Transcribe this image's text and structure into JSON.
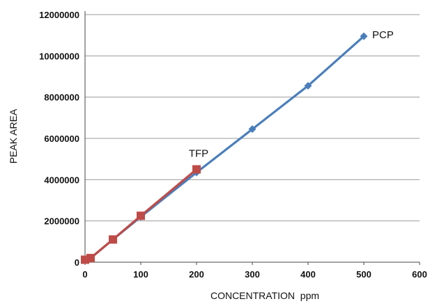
{
  "chart_data": {
    "type": "line",
    "title": "",
    "xlabel": "CONCENTRATION  ppm",
    "ylabel": "PEAK AREA",
    "xlim": [
      0,
      600
    ],
    "ylim": [
      0,
      12000000
    ],
    "x_ticks": [
      "0",
      "100",
      "200",
      "300",
      "400",
      "500",
      "600"
    ],
    "y_ticks": [
      "0",
      "2000000",
      "4000000",
      "6000000",
      "8000000",
      "10000000",
      "12000000"
    ],
    "grid": "horizontal",
    "legend": "none",
    "series": [
      {
        "name": "PCP",
        "color": "#4a7ebb",
        "marker": "diamond",
        "x": [
          0,
          10,
          50,
          100,
          200,
          300,
          400,
          500
        ],
        "y": [
          150000,
          200000,
          1100000,
          2200000,
          4350000,
          6450000,
          8550000,
          10950000
        ]
      },
      {
        "name": "TFP",
        "color": "#be4b48",
        "marker": "square",
        "x": [
          0,
          10,
          50,
          100,
          200
        ],
        "y": [
          120000,
          200000,
          1100000,
          2250000,
          4500000
        ]
      }
    ]
  }
}
